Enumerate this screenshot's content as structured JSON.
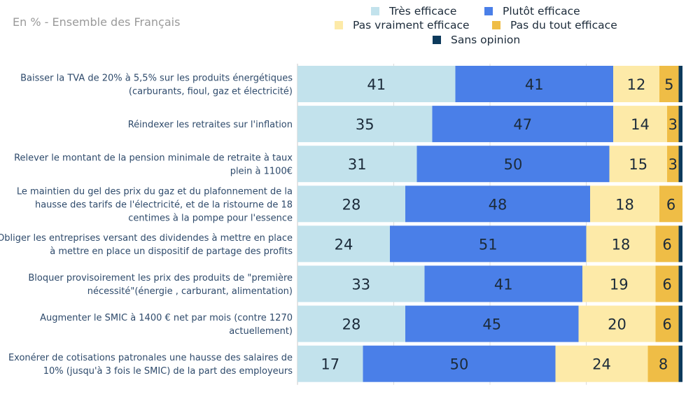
{
  "subtitle": "En % - Ensemble des Français",
  "colors": {
    "tres_efficace": "#c2e2ec",
    "plutot_efficace": "#4a7fe8",
    "pas_vraiment": "#fdeaa8",
    "pas_du_tout": "#efbd46",
    "sans_opinion": "#0d3a5c"
  },
  "chart_data": {
    "type": "bar",
    "orientation": "horizontal-stacked",
    "xlim": [
      0,
      100
    ],
    "grid": true,
    "legend_position": "top",
    "categories": [
      [
        "Baisser la TVA de 20% à 5,5% sur les produits énergétiques",
        "(carburants, fioul, gaz et électricité)"
      ],
      [
        "Réindexer les retraites sur l'inflation"
      ],
      [
        "Relever le montant de la pension minimale de retraite à taux",
        "plein à 1100€"
      ],
      [
        "Le maintien du gel des prix du gaz et du plafonnement de la",
        "hausse des tarifs de l'électricité, et de la ristourne de 18",
        "centimes à la pompe pour l'essence"
      ],
      [
        "Obliger les entreprises versant des dividendes à mettre en place",
        "à mettre en place un dispositif de partage des profits"
      ],
      [
        "Bloquer provisoirement les prix des produits de \"première",
        "nécessité\"(énergie , carburant, alimentation)"
      ],
      [
        "Augmenter le SMIC à 1400 € net par mois (contre 1270",
        "actuellement)"
      ],
      [
        "Exonérer de cotisations patronales une hausse des salaires de",
        "10% (jusqu'à 3 fois le SMIC) de la part des employeurs"
      ]
    ],
    "series": [
      {
        "name": "Très efficace",
        "key": "tres_efficace",
        "values": [
          41,
          35,
          31,
          28,
          24,
          33,
          28,
          17
        ]
      },
      {
        "name": "Plutôt efficace",
        "key": "plutot_efficace",
        "values": [
          41,
          47,
          50,
          48,
          51,
          41,
          45,
          50
        ]
      },
      {
        "name": "Pas vraiment efficace",
        "key": "pas_vraiment",
        "values": [
          12,
          14,
          15,
          18,
          18,
          19,
          20,
          24
        ]
      },
      {
        "name": "Pas du tout efficace",
        "key": "pas_du_tout",
        "values": [
          5,
          3,
          3,
          6,
          6,
          6,
          6,
          8
        ]
      },
      {
        "name": "Sans opinion",
        "key": "sans_opinion",
        "values": [
          1,
          1,
          1,
          0,
          1,
          1,
          1,
          1
        ]
      }
    ]
  }
}
